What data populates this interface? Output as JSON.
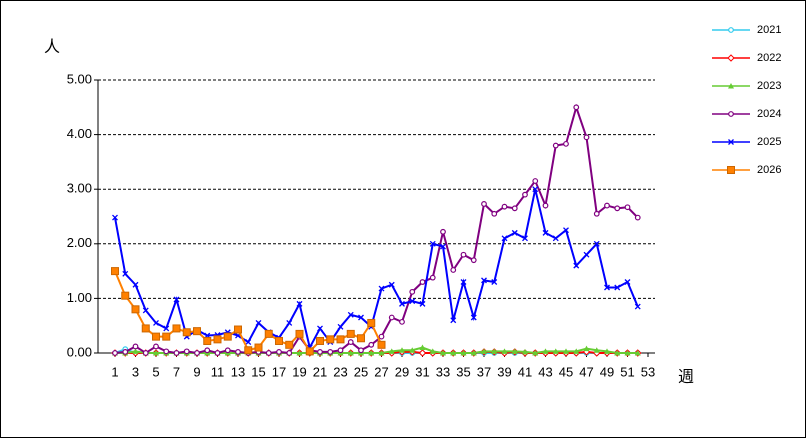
{
  "chart_data": {
    "type": "line",
    "y_label": "人",
    "x_label": "週",
    "x": [
      1,
      2,
      3,
      4,
      5,
      6,
      7,
      8,
      9,
      10,
      11,
      12,
      13,
      14,
      15,
      16,
      17,
      18,
      19,
      20,
      21,
      22,
      23,
      24,
      25,
      26,
      27,
      28,
      29,
      30,
      31,
      32,
      33,
      34,
      35,
      36,
      37,
      38,
      39,
      40,
      41,
      42,
      43,
      44,
      45,
      46,
      47,
      48,
      49,
      50,
      51,
      52
    ],
    "xlim": [
      1,
      53
    ],
    "xticks": [
      1,
      3,
      5,
      7,
      9,
      11,
      13,
      15,
      17,
      19,
      21,
      23,
      25,
      27,
      29,
      31,
      33,
      35,
      37,
      39,
      41,
      43,
      45,
      47,
      49,
      51,
      53
    ],
    "ylim": [
      0,
      5
    ],
    "yticks": [
      {
        "value": 0,
        "label": "0.00"
      },
      {
        "value": 1,
        "label": "1.00"
      },
      {
        "value": 2,
        "label": "2.00"
      },
      {
        "value": 3,
        "label": "3.00"
      },
      {
        "value": 4,
        "label": "4.00"
      },
      {
        "value": 5,
        "label": "5.00"
      }
    ],
    "grid": true,
    "legend": "right",
    "series": [
      {
        "name": "2021",
        "color": "#33ccee",
        "marker": "circle",
        "values": [
          0,
          0.07,
          0,
          0,
          0,
          0,
          0,
          0,
          0,
          0,
          0,
          0,
          0,
          0,
          0,
          0,
          0,
          0,
          0,
          0,
          0,
          0,
          0,
          0,
          0,
          0,
          0,
          0,
          0,
          0,
          0,
          0,
          0,
          0,
          0,
          0,
          0,
          0,
          0,
          0,
          0,
          0,
          0,
          0,
          0,
          0,
          0,
          0,
          0,
          0,
          0,
          0
        ]
      },
      {
        "name": "2022",
        "color": "#ff0000",
        "marker": "diamond",
        "values": [
          0,
          0,
          0,
          0,
          0,
          0,
          0,
          0,
          0,
          0,
          0,
          0,
          0,
          0,
          0,
          0,
          0,
          0,
          0,
          0,
          0,
          0,
          0,
          0,
          0,
          0,
          0,
          0,
          0.02,
          0.02,
          0,
          0,
          0,
          0,
          0,
          0,
          0.02,
          0.02,
          0,
          0.02,
          0,
          0,
          0,
          0,
          0,
          0,
          0.02,
          0,
          0,
          0,
          0,
          0
        ]
      },
      {
        "name": "2023",
        "color": "#66cc33",
        "marker": "triangle",
        "values": [
          0,
          0,
          0.03,
          0,
          0,
          0,
          0,
          0,
          0,
          0,
          0,
          0,
          0,
          0,
          0,
          0,
          0,
          0,
          0,
          0,
          0,
          0,
          0,
          0,
          0,
          0,
          0,
          0.03,
          0.05,
          0.05,
          0.1,
          0.03,
          0,
          0,
          0,
          0,
          0.03,
          0.03,
          0.03,
          0.03,
          0.02,
          0,
          0.03,
          0.03,
          0.03,
          0.03,
          0.08,
          0.05,
          0.03,
          0,
          0,
          0
        ]
      },
      {
        "name": "2024",
        "color": "#800080",
        "marker": "circle",
        "values": [
          0,
          0.02,
          0.12,
          0,
          0.12,
          0.03,
          0,
          0.03,
          0,
          0.05,
          0,
          0.05,
          0.02,
          0,
          0.02,
          0,
          0.02,
          0,
          0.3,
          0.05,
          0.02,
          0.02,
          0.05,
          0.2,
          0.05,
          0.15,
          0.3,
          0.65,
          0.57,
          1.12,
          1.3,
          1.38,
          2.22,
          1.52,
          1.8,
          1.7,
          2.73,
          2.55,
          2.68,
          2.65,
          2.9,
          3.15,
          2.7,
          3.8,
          3.83,
          4.5,
          3.95,
          2.55,
          2.7,
          2.65,
          2.67,
          2.48
        ]
      },
      {
        "name": "2025",
        "color": "#0000ff",
        "marker": "x",
        "values": [
          2.48,
          1.45,
          1.25,
          0.78,
          0.55,
          0.45,
          0.98,
          0.3,
          0.42,
          0.32,
          0.33,
          0.38,
          0.32,
          0.2,
          0.55,
          0.38,
          0.28,
          0.55,
          0.9,
          0.1,
          0.45,
          0.2,
          0.48,
          0.7,
          0.65,
          0.48,
          1.18,
          1.25,
          0.9,
          0.95,
          0.9,
          2.0,
          1.95,
          0.6,
          1.3,
          0.65,
          1.33,
          1.3,
          2.1,
          2.2,
          2.1,
          3.0,
          2.2,
          2.1,
          2.25,
          1.6,
          1.8,
          2.0,
          1.2,
          1.2,
          1.3,
          0.85
        ]
      },
      {
        "name": "2026",
        "color": "#ff8000",
        "marker": "square",
        "values": [
          1.5,
          1.05,
          0.8,
          0.45,
          0.3,
          0.3,
          0.45,
          0.38,
          0.4,
          0.22,
          0.25,
          0.3,
          0.43,
          0.05,
          0.1,
          0.35,
          0.22,
          0.15,
          0.35,
          0.03,
          0.22,
          0.25,
          0.25,
          0.35,
          0.27,
          0.55,
          0.15,
          null,
          null,
          null,
          null,
          null,
          null,
          null,
          null,
          null,
          null,
          null,
          null,
          null,
          null,
          null,
          null,
          null,
          null,
          null,
          null,
          null,
          null,
          null,
          null,
          null
        ]
      }
    ]
  }
}
